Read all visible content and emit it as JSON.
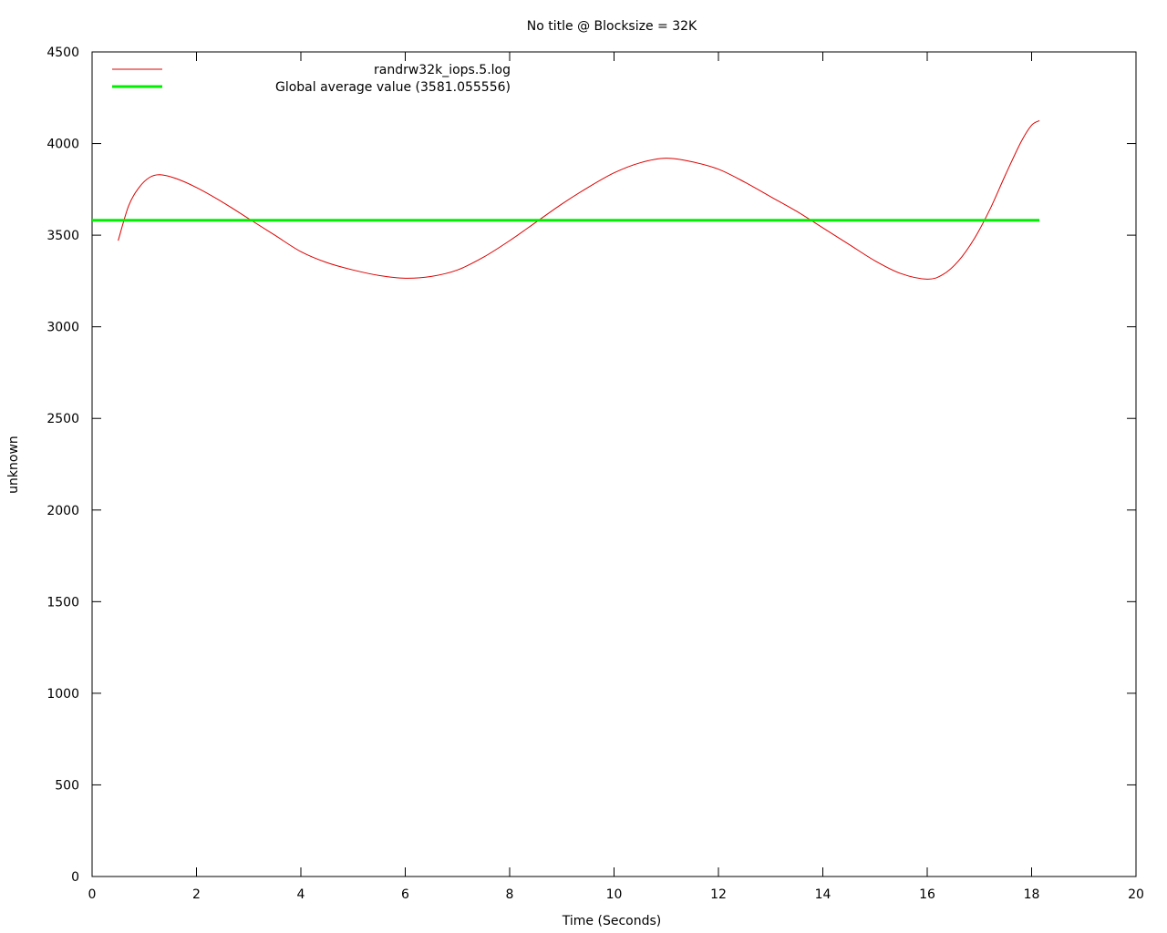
{
  "chart_data": {
    "type": "line",
    "title": "No title @ Blocksize = 32K",
    "xlabel": "Time (Seconds)",
    "ylabel": "unknown",
    "xlim": [
      0,
      20
    ],
    "ylim": [
      0,
      4500
    ],
    "xticks": [
      0,
      2,
      4,
      6,
      8,
      10,
      12,
      14,
      16,
      18,
      20
    ],
    "yticks": [
      0,
      500,
      1000,
      1500,
      2000,
      2500,
      3000,
      3500,
      4000,
      4500
    ],
    "grid": false,
    "legend_position": "top-left",
    "series": [
      {
        "name": "randrw32k_iops.5.log",
        "color": "#dd0000",
        "x": [
          0.5,
          0.7,
          0.9,
          1.1,
          1.3,
          1.6,
          2.0,
          2.5,
          3.0,
          3.5,
          4.0,
          4.5,
          5.0,
          5.5,
          6.0,
          6.5,
          7.0,
          7.5,
          8.0,
          8.5,
          9.0,
          9.5,
          10.0,
          10.5,
          11.0,
          11.5,
          12.0,
          12.5,
          13.0,
          13.5,
          14.0,
          14.5,
          15.0,
          15.5,
          16.0,
          16.3,
          16.6,
          16.9,
          17.2,
          17.5,
          17.8,
          18.0,
          18.15
        ],
        "y": [
          3470,
          3660,
          3760,
          3815,
          3830,
          3810,
          3760,
          3680,
          3590,
          3500,
          3410,
          3350,
          3310,
          3280,
          3265,
          3275,
          3310,
          3380,
          3470,
          3570,
          3670,
          3760,
          3840,
          3895,
          3920,
          3900,
          3860,
          3790,
          3710,
          3630,
          3540,
          3450,
          3360,
          3290,
          3260,
          3285,
          3360,
          3480,
          3640,
          3830,
          4010,
          4100,
          4125
        ]
      },
      {
        "name": "Global average value (3581.055556)",
        "color": "#00ee00",
        "x": [
          0.0,
          18.15
        ],
        "y": [
          3581.055556,
          3581.055556
        ]
      }
    ]
  }
}
